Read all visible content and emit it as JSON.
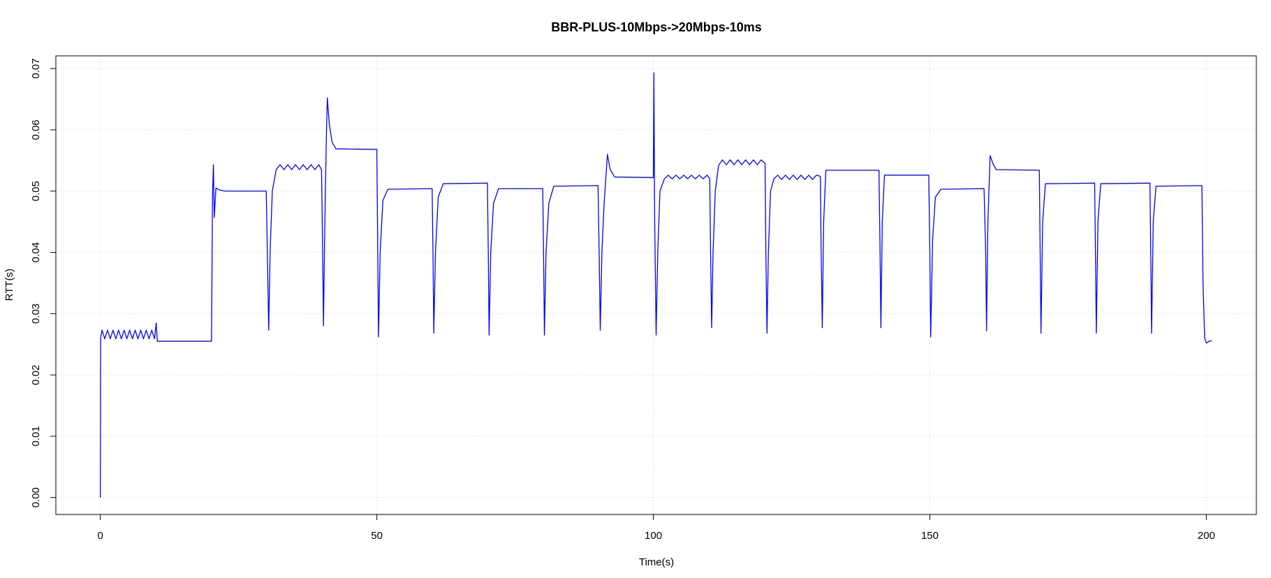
{
  "chart_data": {
    "type": "line",
    "title": "BBR-PLUS-10Mbps->20Mbps-10ms",
    "x_label": "Time(s)",
    "y_label": "RTT(s)",
    "xlim": [
      -8.04,
      209.04
    ],
    "ylim": [
      -0.00277,
      0.07207
    ],
    "xticks": [
      0,
      50,
      100,
      150,
      200
    ],
    "yticks": [
      {
        "value": 0,
        "label": "0.00"
      },
      {
        "value": 0.01,
        "label": "0.01"
      },
      {
        "value": 0.02,
        "label": "0.02"
      },
      {
        "value": 0.03,
        "label": "0.03"
      },
      {
        "value": 0.04,
        "label": "0.04"
      },
      {
        "value": 0.05,
        "label": "0.05"
      },
      {
        "value": 0.06,
        "label": "0.06"
      },
      {
        "value": 0.07,
        "label": "0.07"
      }
    ],
    "grid": true,
    "x": [
      0,
      0.05,
      0.3,
      0.8,
      1.3,
      1.8,
      2.3,
      2.8,
      3.3,
      3.8,
      4.3,
      4.8,
      5.3,
      5.8,
      6.3,
      6.8,
      7.3,
      7.8,
      8.3,
      8.8,
      9.3,
      9.8,
      10.1,
      10.3,
      20.1,
      20.3,
      20.45,
      20.6,
      20.9,
      21.5,
      22.5,
      30.0,
      30.2,
      30.45,
      30.7,
      31.1,
      31.8,
      32.5,
      33.2,
      33.9,
      34.6,
      35.3,
      36,
      36.7,
      37.4,
      38.1,
      38.8,
      39.5,
      40.0,
      40.2,
      40.35,
      40.6,
      40.9,
      41.05,
      41.4,
      41.9,
      42.6,
      50.0,
      50.15,
      50.3,
      50.6,
      51.1,
      52,
      60,
      60.15,
      60.3,
      60.6,
      61.1,
      62,
      70,
      70.15,
      70.3,
      70.6,
      71.1,
      72,
      80,
      80.15,
      80.3,
      80.6,
      81.1,
      82,
      90,
      90.2,
      90.4,
      90.7,
      91.1,
      91.7,
      92.2,
      93,
      100.0,
      100.1,
      100.25,
      100.5,
      100.8,
      101.2,
      102,
      102.7,
      103.4,
      104.1,
      104.8,
      105.5,
      106.2,
      106.9,
      107.6,
      108.3,
      109,
      109.7,
      110.2,
      110.35,
      110.55,
      110.8,
      111.2,
      111.8,
      112.5,
      113.2,
      113.9,
      114.6,
      115.3,
      116,
      116.7,
      117.4,
      118.1,
      118.8,
      119.5,
      120.2,
      120.35,
      120.55,
      120.8,
      121.2,
      121.8,
      122.5,
      123.2,
      123.9,
      124.6,
      125.3,
      126,
      126.7,
      127.4,
      128.1,
      128.8,
      129.5,
      130.2,
      130.35,
      130.55,
      130.8,
      131.2,
      140.8,
      141.0,
      141.15,
      141.4,
      141.8,
      149.8,
      150.0,
      150.15,
      150.5,
      151,
      152,
      159.8,
      160.1,
      160.25,
      160.5,
      160.9,
      161.4,
      162,
      169.8,
      169.95,
      170.1,
      170.4,
      170.9,
      179.8,
      179.95,
      180.1,
      180.4,
      180.9,
      189.8,
      189.95,
      190.1,
      190.4,
      190.9,
      199.2,
      199.4,
      199.7,
      200,
      200.5,
      201
    ],
    "series": [
      {
        "color": "#0000ff",
        "values": [
          0,
          0.026,
          0.0273,
          0.0259,
          0.0273,
          0.0259,
          0.0273,
          0.0259,
          0.0273,
          0.0259,
          0.0273,
          0.0259,
          0.0273,
          0.0259,
          0.0273,
          0.0259,
          0.0273,
          0.0259,
          0.0273,
          0.0259,
          0.0273,
          0.0259,
          0.0285,
          0.0255,
          0.0255,
          0.05,
          0.0543,
          0.0457,
          0.0505,
          0.0502,
          0.05,
          0.05,
          0.04,
          0.0273,
          0.04,
          0.05,
          0.0535,
          0.0543,
          0.0535,
          0.0543,
          0.0535,
          0.0543,
          0.0535,
          0.0543,
          0.0535,
          0.0543,
          0.0535,
          0.0543,
          0.0535,
          0.04,
          0.028,
          0.045,
          0.06,
          0.0652,
          0.061,
          0.058,
          0.0569,
          0.0568,
          0.042,
          0.0262,
          0.04,
          0.0485,
          0.0503,
          0.0504,
          0.04,
          0.0268,
          0.04,
          0.049,
          0.0512,
          0.0513,
          0.04,
          0.0265,
          0.04,
          0.048,
          0.0504,
          0.0504,
          0.04,
          0.0265,
          0.04,
          0.048,
          0.0508,
          0.0509,
          0.04,
          0.0273,
          0.04,
          0.048,
          0.056,
          0.0535,
          0.0523,
          0.0522,
          0.0693,
          0.045,
          0.0265,
          0.04,
          0.05,
          0.052,
          0.0526,
          0.052,
          0.0526,
          0.052,
          0.0526,
          0.052,
          0.0526,
          0.052,
          0.0526,
          0.052,
          0.0526,
          0.052,
          0.04,
          0.0277,
          0.04,
          0.05,
          0.0542,
          0.0551,
          0.0543,
          0.0551,
          0.0543,
          0.0551,
          0.0543,
          0.0551,
          0.0543,
          0.0551,
          0.0543,
          0.0551,
          0.0545,
          0.04,
          0.0268,
          0.04,
          0.05,
          0.052,
          0.0526,
          0.0519,
          0.0526,
          0.0519,
          0.0526,
          0.0519,
          0.0526,
          0.0519,
          0.0526,
          0.0519,
          0.0526,
          0.0524,
          0.04,
          0.0277,
          0.045,
          0.0534,
          0.0534,
          0.04,
          0.0277,
          0.045,
          0.0526,
          0.0526,
          0.04,
          0.0262,
          0.042,
          0.049,
          0.0503,
          0.0504,
          0.04,
          0.0272,
          0.045,
          0.0558,
          0.0545,
          0.0535,
          0.0534,
          0.04,
          0.0268,
          0.045,
          0.0512,
          0.0513,
          0.04,
          0.0268,
          0.045,
          0.0512,
          0.0513,
          0.04,
          0.0268,
          0.045,
          0.0508,
          0.0509,
          0.035,
          0.026,
          0.0252,
          0.0255,
          0.0256
        ]
      }
    ]
  }
}
